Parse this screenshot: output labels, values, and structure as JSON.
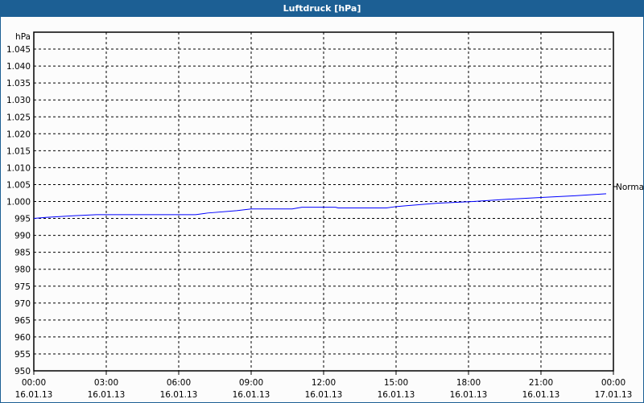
{
  "window": {
    "title": "Luftdruck [hPa]"
  },
  "chart_data": {
    "type": "line",
    "title": "Luftdruck [hPa]",
    "ylabel": "hPa",
    "ylim": [
      950,
      1050
    ],
    "ytick_step": 5,
    "ytick_labels": [
      "950",
      "955",
      "960",
      "965",
      "970",
      "975",
      "980",
      "985",
      "990",
      "995",
      "1.000",
      "1.005",
      "1.010",
      "1.015",
      "1.020",
      "1.025",
      "1.030",
      "1.035",
      "1.040",
      "1.045"
    ],
    "xlim": [
      "16.01.13 00:00",
      "17.01.13 00:00"
    ],
    "xtick_labels": [
      {
        "time": "00:00",
        "date": "16.01.13"
      },
      {
        "time": "03:00",
        "date": "16.01.13"
      },
      {
        "time": "06:00",
        "date": "16.01.13"
      },
      {
        "time": "09:00",
        "date": "16.01.13"
      },
      {
        "time": "12:00",
        "date": "16.01.13"
      },
      {
        "time": "15:00",
        "date": "16.01.13"
      },
      {
        "time": "18:00",
        "date": "16.01.13"
      },
      {
        "time": "21:00",
        "date": "16.01.13"
      },
      {
        "time": "00:00",
        "date": "17.01.13"
      }
    ],
    "grid": true,
    "series": [
      {
        "color": "#0000ff",
        "points": [
          [
            "16.01.13 00:00",
            995.0
          ],
          [
            "16.01.13 00:30",
            995.3
          ],
          [
            "16.01.13 01:42",
            995.8
          ],
          [
            "16.01.13 02:36",
            996.1
          ],
          [
            "16.01.13 06:42",
            996.1
          ],
          [
            "16.01.13 07:12",
            996.6
          ],
          [
            "16.01.13 08:24",
            997.3
          ],
          [
            "16.01.13 09:00",
            997.8
          ],
          [
            "16.01.13 10:42",
            997.8
          ],
          [
            "16.01.13 11:06",
            998.3
          ],
          [
            "16.01.13 12:30",
            998.3
          ],
          [
            "16.01.13 12:36",
            998.1
          ],
          [
            "16.01.13 14:36",
            998.1
          ],
          [
            "16.01.13 15:00",
            998.5
          ],
          [
            "16.01.13 16:42",
            999.5
          ],
          [
            "16.01.13 18:12",
            1000.0
          ],
          [
            "16.01.13 19:42",
            1000.7
          ],
          [
            "16.01.13 21:00",
            1001.2
          ],
          [
            "16.01.13 22:24",
            1001.7
          ],
          [
            "16.01.13 23:42",
            1002.3
          ]
        ]
      }
    ],
    "annotations": [
      {
        "label": "Normal",
        "y": 1004.4
      }
    ]
  }
}
